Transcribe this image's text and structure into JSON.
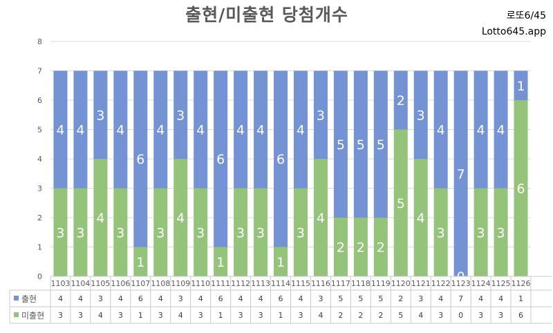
{
  "header": {
    "title": "출현/미출현 당첨개수",
    "brand_line1": "로또6/45",
    "brand_line2": "Lotto645.app"
  },
  "colors": {
    "appear": "#7393d4",
    "miss": "#93c47a",
    "grid": "#d9d9d9",
    "axis_text": "#595959",
    "table_border": "#c9c9c9"
  },
  "chart_data": {
    "type": "bar",
    "stacked": true,
    "categories": [
      "1103",
      "1104",
      "1105",
      "1106",
      "1107",
      "1108",
      "1109",
      "1110",
      "1111",
      "1112",
      "1113",
      "1114",
      "1115",
      "1116",
      "1117",
      "1118",
      "1119",
      "1120",
      "1121",
      "1122",
      "1123",
      "1124",
      "1125",
      "1126"
    ],
    "series": [
      {
        "name": "미출현",
        "color": "#93c47a",
        "values": [
          3,
          3,
          4,
          3,
          1,
          3,
          4,
          3,
          1,
          3,
          3,
          1,
          3,
          4,
          2,
          2,
          2,
          5,
          4,
          3,
          0,
          3,
          3,
          6
        ]
      },
      {
        "name": "출현",
        "color": "#7393d4",
        "values": [
          4,
          4,
          3,
          4,
          6,
          4,
          3,
          4,
          6,
          4,
          4,
          6,
          4,
          3,
          5,
          5,
          5,
          2,
          3,
          4,
          7,
          4,
          4,
          1
        ]
      }
    ],
    "ylim": [
      0,
      8
    ],
    "yticks": [
      0,
      1,
      2,
      3,
      4,
      5,
      6,
      7,
      8
    ],
    "grid": true,
    "data_table": true,
    "title": "출현/미출현 당첨개수",
    "xlabel": "",
    "ylabel": ""
  }
}
